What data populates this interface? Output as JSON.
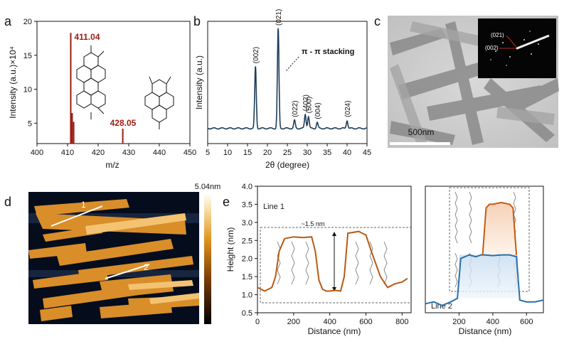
{
  "panels": {
    "a": "a",
    "b": "b",
    "c": "c",
    "d": "d",
    "e": "e"
  },
  "chart_data": [
    {
      "id": "a",
      "type": "bar",
      "xlabel": "m/z",
      "ylabel": "Intensity (a.u.)×10⁴",
      "xlim": [
        400,
        450
      ],
      "ylim": [
        2,
        20
      ],
      "xticks": [
        400,
        410,
        420,
        430,
        440,
        450
      ],
      "yticks": [
        5,
        10,
        15,
        20
      ],
      "peaks": [
        {
          "x": 411.04,
          "y": 18.3
        },
        {
          "x": 411.5,
          "y": 6.5
        },
        {
          "x": 412.0,
          "y": 5.2
        },
        {
          "x": 428.05,
          "y": 4.2
        }
      ],
      "annotations": [
        {
          "text": "411.04",
          "color": "#9b1c14"
        },
        {
          "text": "428.05",
          "color": "#9b1c14"
        }
      ],
      "line_color": "#9b1c14"
    },
    {
      "id": "b",
      "type": "line",
      "xlabel": "2θ (degree)",
      "ylabel": "Intensity (a.u.)",
      "xlim": [
        5,
        45
      ],
      "xticks": [
        5,
        10,
        15,
        20,
        25,
        30,
        35,
        40,
        45
      ],
      "peaks": [
        {
          "x": 17.0,
          "h": 0.62,
          "label": "(002)"
        },
        {
          "x": 22.7,
          "h": 1.0,
          "label": "(021)"
        },
        {
          "x": 26.8,
          "h": 0.08,
          "label": "(022)"
        },
        {
          "x": 29.5,
          "h": 0.14,
          "label": "(402)"
        },
        {
          "x": 30.3,
          "h": 0.12,
          "label": "(500)"
        },
        {
          "x": 32.5,
          "h": 0.06,
          "label": "(004)"
        },
        {
          "x": 40.0,
          "h": 0.08,
          "label": "(024)"
        }
      ],
      "annotation": "π - π stacking",
      "line_color": "#1e3d5a"
    },
    {
      "id": "e1",
      "type": "line",
      "xlabel": "Distance (nm)",
      "ylabel": "Height (nm)",
      "xlim": [
        0,
        850
      ],
      "ylim": [
        0.5,
        4.0
      ],
      "xticks": [
        0,
        200,
        400,
        600,
        800
      ],
      "yticks": [
        0.5,
        1.0,
        1.5,
        2.0,
        2.5,
        3.0,
        3.5,
        4.0
      ],
      "series_name": "Line 1",
      "annotation": "~1.5 nm",
      "x": [
        0,
        40,
        80,
        100,
        120,
        150,
        200,
        250,
        300,
        320,
        340,
        360,
        380,
        400,
        430,
        460,
        480,
        500,
        560,
        580,
        600,
        630,
        680,
        720,
        760,
        800,
        830
      ],
      "y": [
        1.2,
        1.1,
        1.2,
        1.5,
        2.2,
        2.55,
        2.6,
        2.58,
        2.6,
        2.2,
        1.4,
        1.15,
        1.1,
        1.1,
        1.12,
        1.1,
        1.5,
        2.7,
        2.75,
        2.7,
        2.65,
        2.2,
        1.5,
        1.2,
        1.3,
        1.35,
        1.45
      ],
      "line_color": "#b85a14"
    },
    {
      "id": "e2",
      "type": "line",
      "xlabel": "Distance (nm)",
      "xlim": [
        0,
        700
      ],
      "xticks": [
        200,
        400,
        600
      ],
      "series_name": "Line 2",
      "x": [
        0,
        50,
        100,
        150,
        190,
        210,
        260,
        300,
        330,
        350,
        400,
        450,
        500,
        540,
        560,
        600,
        650,
        700
      ],
      "y": [
        0.75,
        0.8,
        0.7,
        0.8,
        0.9,
        2.0,
        2.1,
        2.05,
        2.1,
        2.1,
        2.08,
        2.1,
        2.1,
        2.05,
        0.85,
        0.8,
        0.8,
        0.85
      ],
      "line_color": "#2a6fa8",
      "overlay_x": [
        340,
        360,
        380,
        400,
        450,
        500,
        520,
        540
      ],
      "overlay_y": [
        2.1,
        3.4,
        3.5,
        3.5,
        3.55,
        3.5,
        3.4,
        2.1
      ],
      "overlay_color": "#c85a14"
    }
  ],
  "tem": {
    "scale_label": "500nm",
    "inset_labels": [
      "(021)",
      "(002)"
    ]
  },
  "afm": {
    "colorbar_max": "5.04nm",
    "line_labels": [
      "1",
      "2"
    ]
  }
}
